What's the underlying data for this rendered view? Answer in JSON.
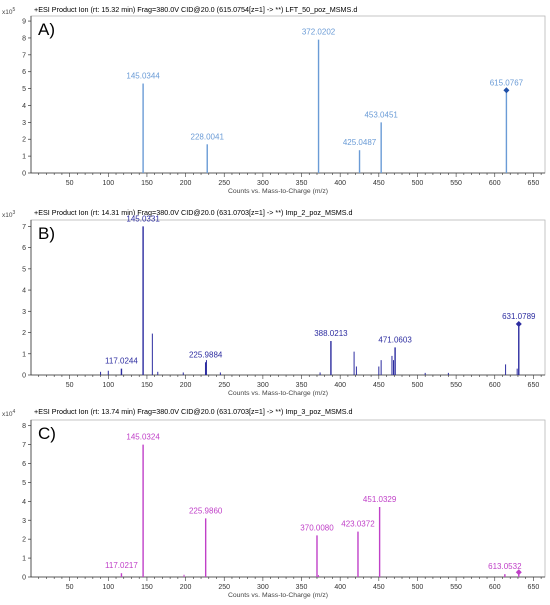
{
  "chart_data": [
    {
      "type": "bar",
      "panel_label": "A)",
      "header": "+ESI Product Ion (rt: 15.32 min) Frag=380.0V CID@20.0 (615.0754[z=1] -> **) LFT_50_poz_MSMS.d",
      "scale_label": "x10",
      "scale_exp": "5",
      "xlabel": "Counts vs. Mass-to-Charge (m/z)",
      "xlim": [
        0,
        665
      ],
      "ylim": [
        0,
        9.3
      ],
      "xticks": [
        "50",
        "100",
        "150",
        "200",
        "250",
        "300",
        "350",
        "400",
        "450",
        "500",
        "550",
        "600",
        "650"
      ],
      "yticks": [
        "0",
        "1",
        "2",
        "3",
        "4",
        "5",
        "6",
        "7",
        "8",
        "9"
      ],
      "color": "#6a9bd6",
      "peaks": [
        {
          "mz": 145.0344,
          "intensity": 5.3,
          "label": "145.0344"
        },
        {
          "mz": 228.0041,
          "intensity": 1.7,
          "label": "228.0041"
        },
        {
          "mz": 372.0202,
          "intensity": 7.9,
          "label": "372.0202"
        },
        {
          "mz": 425.0487,
          "intensity": 1.35,
          "label": "425.0487"
        },
        {
          "mz": 453.0451,
          "intensity": 3.0,
          "label": "453.0451"
        },
        {
          "mz": 615.0767,
          "intensity": 4.9,
          "label": "615.0767",
          "marker": true
        }
      ],
      "minor_peaks": []
    },
    {
      "type": "bar",
      "panel_label": "B)",
      "header": "+ESI Product Ion (rt: 14.31 min) Frag=380.0V CID@20.0 (631.0703[z=1] -> **) Imp_2_poz_MSMS.d",
      "scale_label": "x10",
      "scale_exp": "3",
      "xlabel": "Counts vs. Mass-to-Charge (m/z)",
      "xlim": [
        0,
        665
      ],
      "ylim": [
        0,
        7.3
      ],
      "xticks": [
        "50",
        "100",
        "150",
        "200",
        "250",
        "300",
        "350",
        "400",
        "450",
        "500",
        "550",
        "600",
        "650"
      ],
      "yticks": [
        "0",
        "1",
        "2",
        "3",
        "4",
        "5",
        "6",
        "7"
      ],
      "color": "#2c2ca0",
      "peaks": [
        {
          "mz": 117.0244,
          "intensity": 0.3,
          "label": "117.0244"
        },
        {
          "mz": 145.0331,
          "intensity": 7.0,
          "label": "145.0331"
        },
        {
          "mz": 225.9884,
          "intensity": 0.6,
          "label": "225.9884"
        },
        {
          "mz": 388.0213,
          "intensity": 1.6,
          "label": "388.0213"
        },
        {
          "mz": 471.0603,
          "intensity": 1.3,
          "label": "471.0603"
        },
        {
          "mz": 631.0789,
          "intensity": 2.4,
          "label": "631.0789",
          "marker": true
        }
      ],
      "minor_peaks": [
        {
          "mz": 90,
          "intensity": 0.15
        },
        {
          "mz": 100,
          "intensity": 0.2
        },
        {
          "mz": 157,
          "intensity": 1.95
        },
        {
          "mz": 164,
          "intensity": 0.15
        },
        {
          "mz": 197,
          "intensity": 0.12
        },
        {
          "mz": 227,
          "intensity": 0.7
        },
        {
          "mz": 245,
          "intensity": 0.12
        },
        {
          "mz": 374,
          "intensity": 0.12
        },
        {
          "mz": 418,
          "intensity": 1.1
        },
        {
          "mz": 421,
          "intensity": 0.4
        },
        {
          "mz": 450,
          "intensity": 0.4
        },
        {
          "mz": 453,
          "intensity": 0.7
        },
        {
          "mz": 467,
          "intensity": 0.9
        },
        {
          "mz": 469,
          "intensity": 0.7
        },
        {
          "mz": 510,
          "intensity": 0.1
        },
        {
          "mz": 540,
          "intensity": 0.1
        },
        {
          "mz": 614,
          "intensity": 0.5
        },
        {
          "mz": 629,
          "intensity": 0.3
        }
      ]
    },
    {
      "type": "bar",
      "panel_label": "C)",
      "header": "+ESI Product Ion (rt: 13.74 min) Frag=380.0V CID@20.0 (631.0703[z=1] -> **) Imp_3_poz_MSMS.d",
      "scale_label": "x10",
      "scale_exp": "4",
      "xlabel": "Counts vs. Mass-to-Charge (m/z)",
      "xlim": [
        0,
        665
      ],
      "ylim": [
        0,
        8.3
      ],
      "xticks": [
        "50",
        "100",
        "150",
        "200",
        "250",
        "300",
        "350",
        "400",
        "450",
        "500",
        "550",
        "600",
        "650"
      ],
      "yticks": [
        "0",
        "1",
        "2",
        "3",
        "4",
        "5",
        "6",
        "7",
        "8"
      ],
      "color": "#c040c8",
      "peaks": [
        {
          "mz": 117.0217,
          "intensity": 0.2,
          "label": "117.0217"
        },
        {
          "mz": 145.0324,
          "intensity": 7.0,
          "label": "145.0324"
        },
        {
          "mz": 225.986,
          "intensity": 3.1,
          "label": "225.9860"
        },
        {
          "mz": 370.008,
          "intensity": 2.2,
          "label": "370.0080"
        },
        {
          "mz": 423.0372,
          "intensity": 2.4,
          "label": "423.0372"
        },
        {
          "mz": 451.0329,
          "intensity": 3.7,
          "label": "451.0329"
        },
        {
          "mz": 613.0532,
          "intensity": 0.15,
          "label": "613.0532"
        },
        {
          "mz": 631.0703,
          "intensity": 0.25,
          "label": "",
          "marker": true
        }
      ],
      "minor_peaks": [
        {
          "mz": 198,
          "intensity": 0.12
        },
        {
          "mz": 372,
          "intensity": 0.1
        }
      ]
    }
  ]
}
